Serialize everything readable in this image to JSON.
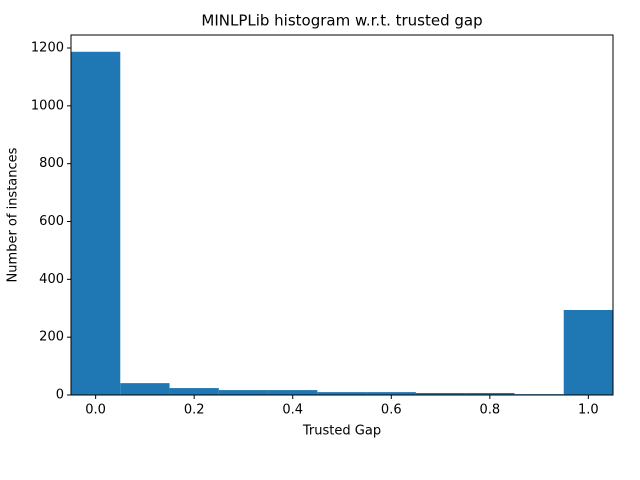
{
  "chart_data": {
    "type": "histogram",
    "title": "MINLPLib histogram w.r.t. trusted gap",
    "x_label": "Trusted Gap",
    "y_label": "Number of instances",
    "bins": [
      -0.05,
      0.05,
      0.15,
      0.25,
      0.35,
      0.45,
      0.55,
      0.65,
      0.75,
      0.85,
      0.95,
      1.05
    ],
    "values": [
      1187,
      41,
      24,
      17,
      17,
      10,
      10,
      7,
      7,
      3,
      294
    ],
    "color": "#1f77b4",
    "xlim": [
      -0.05,
      1.05
    ],
    "xticks": [
      {
        "value": 0,
        "label": "0.0"
      },
      0.2,
      0.4,
      0.6,
      0.8,
      {
        "value": 1,
        "label": "1.0"
      }
    ],
    "ylim": [
      0,
      1245
    ],
    "yticks": [
      0,
      200,
      400,
      600,
      800,
      1000,
      1200
    ],
    "grid": false
  }
}
